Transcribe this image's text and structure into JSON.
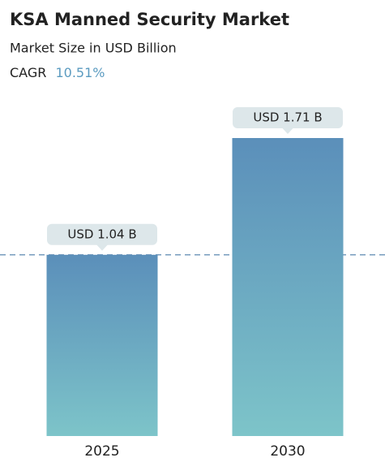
{
  "chart_data": {
    "type": "bar",
    "title": "KSA Manned Security Market",
    "subtitle": "Market Size in USD Billion",
    "cagr_label": "CAGR",
    "cagr": "10.51%",
    "categories": [
      "2025",
      "2030"
    ],
    "values": [
      1.04,
      1.71
    ],
    "value_labels": [
      "USD 1.04 B",
      "USD 1.71 B"
    ],
    "color_top": "#5b8fba",
    "color_bottom": "#7dc4c9"
  }
}
